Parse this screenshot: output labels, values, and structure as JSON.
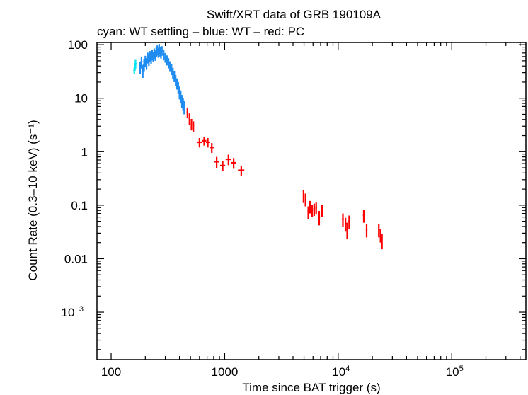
{
  "chart_data": {
    "type": "scatter",
    "title": "Swift/XRT data of GRB 190109A",
    "subtitle": "cyan: WT settling – blue: WT – red: PC",
    "xlabel": "Time since BAT trigger (s)",
    "ylabel": "Count Rate (0.3–10 keV) (s⁻¹)",
    "xscale": "log",
    "yscale": "log",
    "xlim": [
      75,
      450000
    ],
    "ylim": [
      0.00013,
      110
    ],
    "x_ticks": [
      {
        "value": 100,
        "label": "100"
      },
      {
        "value": 1000,
        "label": "1000"
      },
      {
        "value": 10000,
        "label": "10",
        "exp": "4"
      },
      {
        "value": 100000,
        "label": "10",
        "exp": "5"
      }
    ],
    "y_ticks": [
      {
        "value": 100,
        "label": "100"
      },
      {
        "value": 10,
        "label": "10"
      },
      {
        "value": 1,
        "label": "1"
      },
      {
        "value": 0.1,
        "label": "0.1"
      },
      {
        "value": 0.01,
        "label": "0.01"
      },
      {
        "value": 0.001,
        "label": "10",
        "exp": "−3"
      }
    ],
    "series": [
      {
        "name": "WT settling",
        "color": "#00e5ee",
        "points": [
          {
            "x": 160,
            "y": 33,
            "yerr": 5
          },
          {
            "x": 162,
            "y": 38,
            "yerr": 6
          },
          {
            "x": 164,
            "y": 44,
            "yerr": 8
          }
        ]
      },
      {
        "name": "WT",
        "color": "#1e8cf0",
        "points": [
          {
            "x": 180,
            "y": 38,
            "yerr": 10
          },
          {
            "x": 185,
            "y": 48,
            "yerr": 12
          },
          {
            "x": 190,
            "y": 33,
            "yerr": 9
          },
          {
            "x": 195,
            "y": 42,
            "yerr": 11
          },
          {
            "x": 200,
            "y": 50,
            "yerr": 12
          },
          {
            "x": 205,
            "y": 45,
            "yerr": 11
          },
          {
            "x": 210,
            "y": 58,
            "yerr": 13
          },
          {
            "x": 215,
            "y": 52,
            "yerr": 12
          },
          {
            "x": 220,
            "y": 62,
            "yerr": 14
          },
          {
            "x": 225,
            "y": 55,
            "yerr": 12
          },
          {
            "x": 230,
            "y": 66,
            "yerr": 15
          },
          {
            "x": 235,
            "y": 60,
            "yerr": 13
          },
          {
            "x": 240,
            "y": 70,
            "yerr": 15
          },
          {
            "x": 245,
            "y": 64,
            "yerr": 14
          },
          {
            "x": 250,
            "y": 74,
            "yerr": 16
          },
          {
            "x": 255,
            "y": 80,
            "yerr": 17
          },
          {
            "x": 260,
            "y": 72,
            "yerr": 15
          },
          {
            "x": 265,
            "y": 85,
            "yerr": 18
          },
          {
            "x": 270,
            "y": 76,
            "yerr": 16
          },
          {
            "x": 275,
            "y": 70,
            "yerr": 15
          },
          {
            "x": 280,
            "y": 78,
            "yerr": 16
          },
          {
            "x": 290,
            "y": 65,
            "yerr": 14
          },
          {
            "x": 300,
            "y": 58,
            "yerr": 12
          },
          {
            "x": 310,
            "y": 52,
            "yerr": 11
          },
          {
            "x": 320,
            "y": 46,
            "yerr": 10
          },
          {
            "x": 330,
            "y": 40,
            "yerr": 9
          },
          {
            "x": 340,
            "y": 35,
            "yerr": 8
          },
          {
            "x": 350,
            "y": 30,
            "yerr": 7
          },
          {
            "x": 360,
            "y": 26,
            "yerr": 6
          },
          {
            "x": 370,
            "y": 22,
            "yerr": 5
          },
          {
            "x": 380,
            "y": 19,
            "yerr": 4.5
          },
          {
            "x": 390,
            "y": 16,
            "yerr": 4
          },
          {
            "x": 400,
            "y": 13,
            "yerr": 3.5
          },
          {
            "x": 410,
            "y": 11,
            "yerr": 3
          },
          {
            "x": 420,
            "y": 9,
            "yerr": 2.5
          },
          {
            "x": 430,
            "y": 8,
            "yerr": 2.2
          },
          {
            "x": 440,
            "y": 7,
            "yerr": 2
          }
        ]
      },
      {
        "name": "PC",
        "color": "#ff0000",
        "points": [
          {
            "x": 470,
            "y": 5.5,
            "xerr": 8,
            "yerr": 1.2
          },
          {
            "x": 490,
            "y": 4.2,
            "xerr": 8,
            "yerr": 1.0
          },
          {
            "x": 510,
            "y": 3.3,
            "xerr": 8,
            "yerr": 0.8
          },
          {
            "x": 530,
            "y": 3.0,
            "xerr": 8,
            "yerr": 0.7
          },
          {
            "x": 600,
            "y": 1.5,
            "xerr": 30,
            "yerr": 0.3
          },
          {
            "x": 660,
            "y": 1.6,
            "xerr": 30,
            "yerr": 0.3
          },
          {
            "x": 710,
            "y": 1.5,
            "xerr": 25,
            "yerr": 0.3
          },
          {
            "x": 770,
            "y": 1.2,
            "xerr": 30,
            "yerr": 0.25
          },
          {
            "x": 850,
            "y": 0.65,
            "xerr": 45,
            "yerr": 0.15
          },
          {
            "x": 960,
            "y": 0.55,
            "xerr": 50,
            "yerr": 0.12
          },
          {
            "x": 1080,
            "y": 0.72,
            "xerr": 60,
            "yerr": 0.16
          },
          {
            "x": 1200,
            "y": 0.62,
            "xerr": 60,
            "yerr": 0.14
          },
          {
            "x": 1400,
            "y": 0.45,
            "xerr": 90,
            "yerr": 0.1
          },
          {
            "x": 4950,
            "y": 0.15,
            "xerr": 60,
            "yerr": 0.04
          },
          {
            "x": 5150,
            "y": 0.13,
            "xerr": 60,
            "yerr": 0.035
          },
          {
            "x": 5450,
            "y": 0.075,
            "xerr": 90,
            "yerr": 0.02
          },
          {
            "x": 5650,
            "y": 0.095,
            "xerr": 90,
            "yerr": 0.025
          },
          {
            "x": 5900,
            "y": 0.08,
            "xerr": 100,
            "yerr": 0.02
          },
          {
            "x": 6150,
            "y": 0.085,
            "xerr": 100,
            "yerr": 0.022
          },
          {
            "x": 6400,
            "y": 0.09,
            "xerr": 100,
            "yerr": 0.022
          },
          {
            "x": 6800,
            "y": 0.06,
            "xerr": 120,
            "yerr": 0.018
          },
          {
            "x": 7200,
            "y": 0.08,
            "xerr": 150,
            "yerr": 0.02
          },
          {
            "x": 11000,
            "y": 0.055,
            "xerr": 200,
            "yerr": 0.015
          },
          {
            "x": 11600,
            "y": 0.045,
            "xerr": 200,
            "yerr": 0.013
          },
          {
            "x": 12000,
            "y": 0.035,
            "xerr": 200,
            "yerr": 0.012
          },
          {
            "x": 12500,
            "y": 0.05,
            "xerr": 250,
            "yerr": 0.014
          },
          {
            "x": 16800,
            "y": 0.065,
            "xerr": 300,
            "yerr": 0.018
          },
          {
            "x": 17800,
            "y": 0.035,
            "xerr": 300,
            "yerr": 0.01
          },
          {
            "x": 22800,
            "y": 0.035,
            "xerr": 300,
            "yerr": 0.01
          },
          {
            "x": 23600,
            "y": 0.028,
            "xerr": 300,
            "yerr": 0.008
          },
          {
            "x": 24300,
            "y": 0.022,
            "xerr": 300,
            "yerr": 0.007
          }
        ]
      }
    ]
  }
}
